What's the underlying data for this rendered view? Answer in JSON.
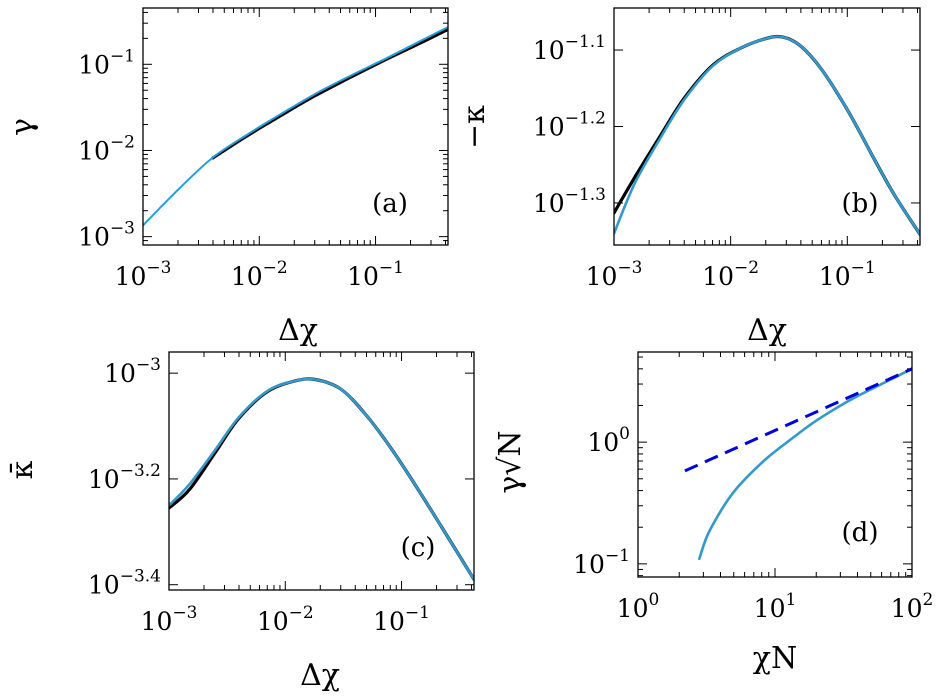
{
  "chart_data": [
    {
      "panel": "a",
      "type": "line",
      "tag": "(a)",
      "xlabel": "Δχ",
      "ylabel": "γ",
      "xscale": "log",
      "yscale": "log",
      "xlim": [
        0.001,
        0.42
      ],
      "ylim": [
        0.0008,
        0.45
      ],
      "x_ticks": [
        {
          "v": 0.001,
          "b": "10",
          "e": "−3"
        },
        {
          "v": 0.01,
          "b": "10",
          "e": "−2"
        },
        {
          "v": 0.1,
          "b": "10",
          "e": "−1"
        }
      ],
      "y_ticks": [
        {
          "v": 0.001,
          "b": "10",
          "e": "−3"
        },
        {
          "v": 0.01,
          "b": "10",
          "e": "−2"
        },
        {
          "v": 0.1,
          "b": "10",
          "e": "−1"
        }
      ],
      "series": [
        {
          "color": "#000000",
          "width": 3.2,
          "x": [
            0.004,
            0.008,
            0.015,
            0.03,
            0.06,
            0.12,
            0.25,
            0.42
          ],
          "y": [
            0.0082,
            0.015,
            0.025,
            0.043,
            0.07,
            0.112,
            0.18,
            0.255
          ]
        },
        {
          "color": "#1fa1e0",
          "width": 2,
          "x": [
            0.001,
            0.002,
            0.004,
            0.008,
            0.015,
            0.03,
            0.06,
            0.12,
            0.25,
            0.42
          ],
          "y": [
            0.00135,
            0.0035,
            0.0083,
            0.0155,
            0.026,
            0.045,
            0.073,
            0.115,
            0.19,
            0.27
          ]
        }
      ]
    },
    {
      "panel": "b",
      "type": "line",
      "tag": "(b)",
      "xlabel": "Δχ",
      "ylabel": "−κ",
      "xscale": "log",
      "yscale": "log",
      "xlim": [
        0.001,
        0.42
      ],
      "ylim_exp": [
        -1.355,
        -1.045
      ],
      "x_ticks": [
        {
          "v": 0.001,
          "b": "10",
          "e": "−3"
        },
        {
          "v": 0.01,
          "b": "10",
          "e": "−2"
        },
        {
          "v": 0.1,
          "b": "10",
          "e": "−1"
        }
      ],
      "y_ticks": [
        {
          "v": -1.1,
          "b": "10",
          "e": "−1.1"
        },
        {
          "v": -1.2,
          "b": "10",
          "e": "−1.2"
        },
        {
          "v": -1.3,
          "b": "10",
          "e": "−1.3"
        }
      ],
      "series": [
        {
          "color": "#000000",
          "width": 3.2,
          "x": [
            0.001,
            0.0015,
            0.0025,
            0.004,
            0.007,
            0.012,
            0.02,
            0.028,
            0.04,
            0.06,
            0.1,
            0.16,
            0.25,
            0.42
          ],
          "y_exp": [
            -1.313,
            -1.267,
            -1.212,
            -1.163,
            -1.12,
            -1.098,
            -1.085,
            -1.083,
            -1.095,
            -1.125,
            -1.178,
            -1.235,
            -1.288,
            -1.341
          ]
        },
        {
          "color": "#3399cc",
          "width": 2.6,
          "x": [
            0.001,
            0.0015,
            0.0025,
            0.004,
            0.007,
            0.012,
            0.02,
            0.028,
            0.04,
            0.06,
            0.1,
            0.16,
            0.25,
            0.42
          ],
          "y_exp": [
            -1.34,
            -1.275,
            -1.215,
            -1.165,
            -1.121,
            -1.098,
            -1.085,
            -1.083,
            -1.095,
            -1.125,
            -1.178,
            -1.235,
            -1.288,
            -1.341
          ]
        }
      ]
    },
    {
      "panel": "c",
      "type": "line",
      "tag": "(c)",
      "xlabel": "Δχ",
      "ylabel": "κ̄",
      "xscale": "log",
      "yscale": "log",
      "xlim": [
        0.001,
        0.42
      ],
      "ylim_exp": [
        -3.41,
        -2.96
      ],
      "x_ticks": [
        {
          "v": 0.001,
          "b": "10",
          "e": "−3"
        },
        {
          "v": 0.01,
          "b": "10",
          "e": "−2"
        },
        {
          "v": 0.1,
          "b": "10",
          "e": "−1"
        }
      ],
      "y_ticks": [
        {
          "v": -3.0,
          "b": "10",
          "e": "−3"
        },
        {
          "v": -3.2,
          "b": "10",
          "e": "−3.2"
        },
        {
          "v": -3.4,
          "b": "10",
          "e": "−3.4"
        }
      ],
      "series": [
        {
          "color": "#000000",
          "width": 3.2,
          "x": [
            0.001,
            0.0015,
            0.0025,
            0.004,
            0.007,
            0.012,
            0.018,
            0.03,
            0.05,
            0.08,
            0.13,
            0.22,
            0.42
          ],
          "y_exp": [
            -3.255,
            -3.22,
            -3.15,
            -3.085,
            -3.035,
            -3.015,
            -3.012,
            -3.03,
            -3.08,
            -3.14,
            -3.21,
            -3.29,
            -3.39
          ]
        },
        {
          "color": "#3399cc",
          "width": 2.6,
          "x": [
            0.001,
            0.0015,
            0.0025,
            0.004,
            0.007,
            0.012,
            0.018,
            0.03,
            0.05,
            0.08,
            0.13,
            0.22,
            0.42
          ],
          "y_exp": [
            -3.25,
            -3.21,
            -3.145,
            -3.083,
            -3.034,
            -3.015,
            -3.012,
            -3.03,
            -3.08,
            -3.14,
            -3.21,
            -3.29,
            -3.39
          ]
        }
      ]
    },
    {
      "panel": "d",
      "type": "line",
      "tag": "(d)",
      "xlabel": "χN",
      "ylabel": "γ√N",
      "xscale": "log",
      "yscale": "log",
      "xlim": [
        1,
        100
      ],
      "ylim": [
        0.078,
        5.5
      ],
      "x_ticks": [
        {
          "v": 1,
          "b": "10",
          "e": "0"
        },
        {
          "v": 10,
          "b": "10",
          "e": "1"
        },
        {
          "v": 100,
          "b": "10",
          "e": "2"
        }
      ],
      "y_ticks": [
        {
          "v": 0.1,
          "b": "10",
          "e": "−1"
        },
        {
          "v": 1,
          "b": "10",
          "e": "0"
        }
      ],
      "series": [
        {
          "color": "#3399cc",
          "width": 2.6,
          "x": [
            2.8,
            3.2,
            4,
            5,
            6.5,
            9,
            13,
            20,
            35,
            60,
            100
          ],
          "y": [
            0.11,
            0.17,
            0.27,
            0.39,
            0.54,
            0.76,
            1.05,
            1.5,
            2.2,
            3.0,
            4.0
          ]
        },
        {
          "color": "#0000dd",
          "width": 3,
          "dash": "14 8",
          "x": [
            2.2,
            100
          ],
          "y": [
            0.58,
            4.0
          ]
        }
      ]
    }
  ]
}
